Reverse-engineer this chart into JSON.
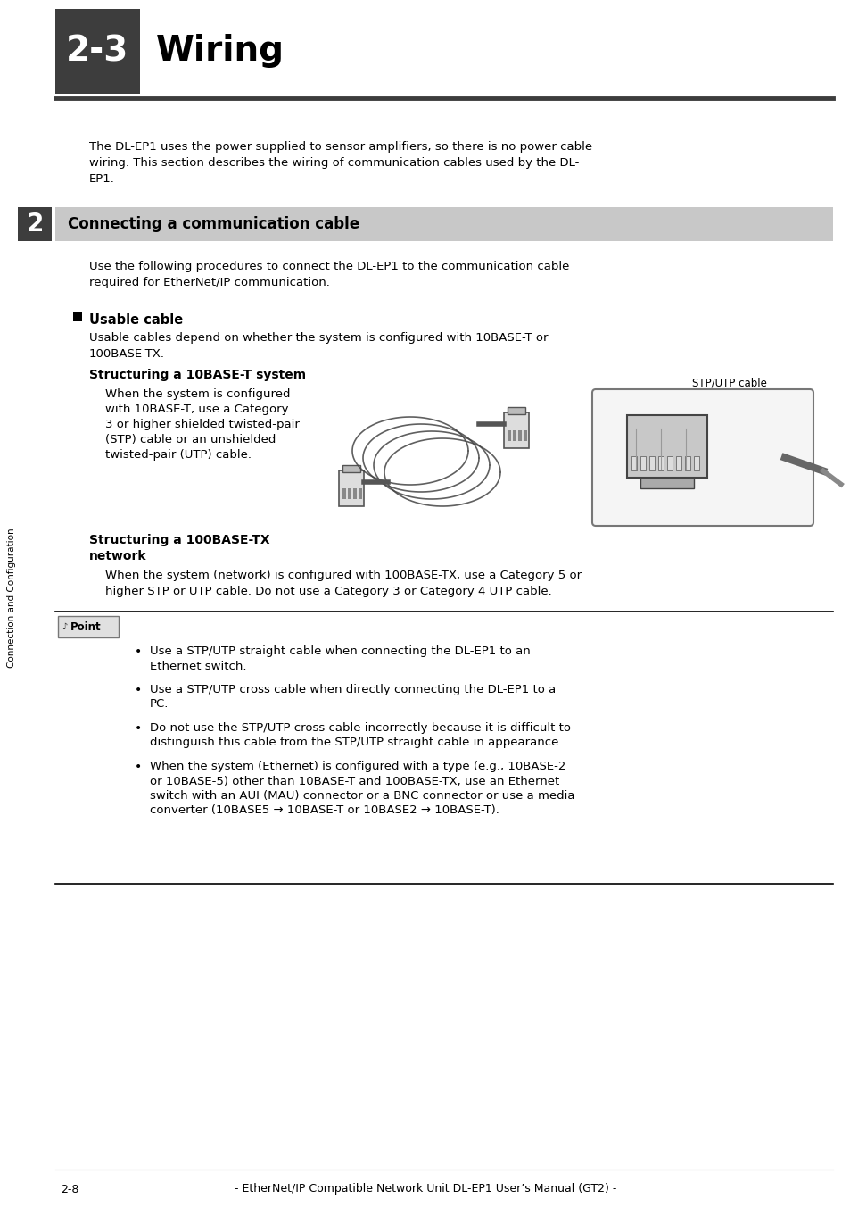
{
  "page_bg": "#ffffff",
  "header_bg": "#3d3d3d",
  "header_number": "2-3",
  "header_title": "Wiring",
  "header_line_color": "#3d3d3d",
  "side_tab_bg": "#3d3d3d",
  "side_tab_text": "2",
  "side_label": "Connection and Configuration",
  "section_bg": "#c8c8c8",
  "section_title": "Connecting a communication cable",
  "intro_text_1": "The DL-EP1 uses the power supplied to sensor amplifiers, so there is no power cable",
  "intro_text_2": "wiring. This section describes the wiring of communication cables used by the DL-",
  "intro_text_3": "EP1.",
  "use_text_1": "Use the following procedures to connect the DL-EP1 to the communication cable",
  "use_text_2": "required for EtherNet/IP communication.",
  "usable_cable_label": "Usable cable",
  "usable_cable_text_1": "Usable cables depend on whether the system is configured with 10BASE-T or",
  "usable_cable_text_2": "100BASE-TX.",
  "struct10_title": "Structuring a 10BASE-T system",
  "struct10_lines": [
    "When the system is configured",
    "with 10BASE-T, use a Category",
    "3 or higher shielded twisted-pair",
    "(STP) cable or an unshielded",
    "twisted-pair (UTP) cable."
  ],
  "stp_label": "STP/UTP cable",
  "struct100_title_1": "Structuring a 100BASE-TX",
  "struct100_title_2": "network",
  "struct100_text_1": "When the system (network) is configured with 100BASE-TX, use a Category 5 or",
  "struct100_text_2": "higher STP or UTP cable. Do not use a Category 3 or Category 4 UTP cable.",
  "point_label": "Point",
  "point_bullet_1_lines": [
    "Use a STP/UTP straight cable when connecting the DL-EP1 to an",
    "Ethernet switch."
  ],
  "point_bullet_2_lines": [
    "Use a STP/UTP cross cable when directly connecting the DL-EP1 to a",
    "PC."
  ],
  "point_bullet_3_lines": [
    "Do not use the STP/UTP cross cable incorrectly because it is difficult to",
    "distinguish this cable from the STP/UTP straight cable in appearance."
  ],
  "point_bullet_4_lines": [
    "When the system (Ethernet) is configured with a type (e.g., 10BASE-2",
    "or 10BASE-5) other than 10BASE-T and 100BASE-TX, use an Ethernet",
    "switch with an AUI (MAU) connector or a BNC connector or use a media",
    "converter (10BASE5 → 10BASE-T or 10BASE2 → 10BASE-T)."
  ],
  "footer_text": "2-8",
  "footer_center": "- EtherNet/IP Compatible Network Unit DL-EP1 User’s Manual (GT2) -"
}
